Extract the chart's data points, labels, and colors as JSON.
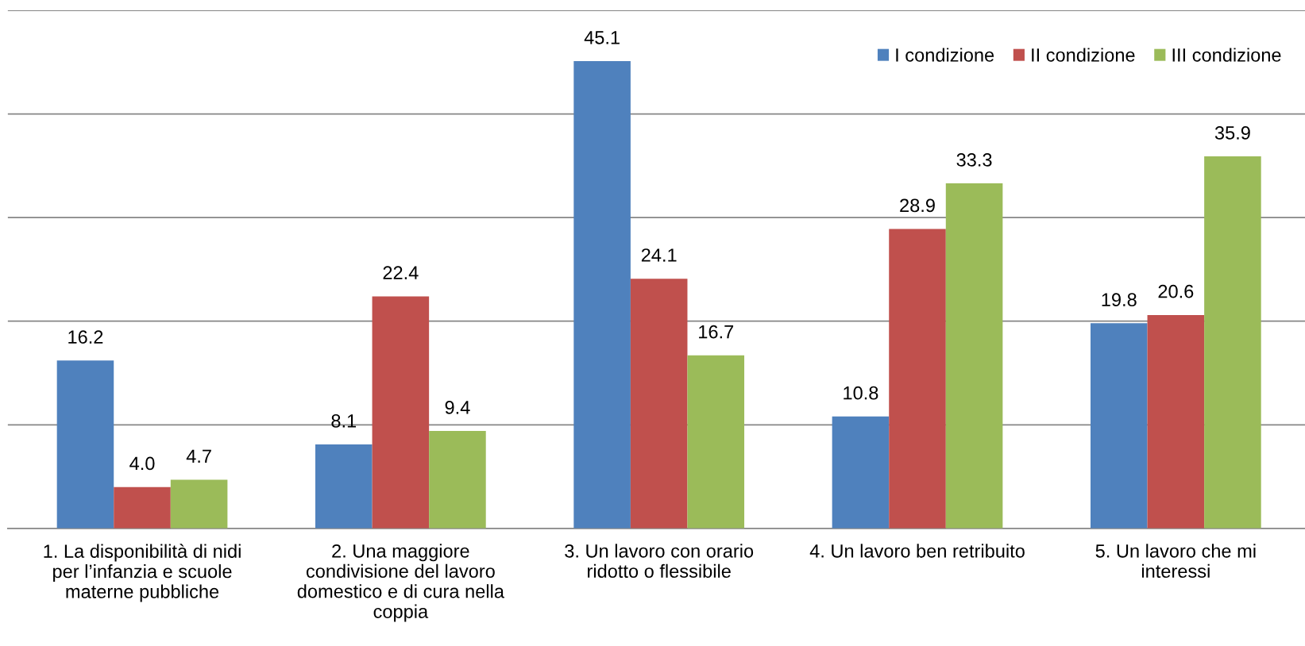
{
  "chart_data": {
    "type": "bar",
    "categories": [
      "1. La disponibilità di nidi\nper l’infanzia e scuole\nmaterne pubbliche",
      "2. Una maggiore\ncondivisione del lavoro\ndomestico e di cura nella\ncoppia",
      "3. Un lavoro con orario\nridotto o flessibile",
      "4. Un lavoro ben retribuito",
      "5. Un lavoro che mi\ninteressi"
    ],
    "series": [
      {
        "name": "I condizione",
        "color": "#4f81bd",
        "values": [
          16.2,
          8.1,
          45.1,
          10.8,
          19.8
        ],
        "value_labels": [
          "16.2",
          "8.1",
          "45.1",
          "10.8",
          "19.8"
        ]
      },
      {
        "name": "II condizione",
        "color": "#c0504d",
        "values": [
          4,
          22.4,
          24.1,
          28.9,
          20.6
        ],
        "value_labels": [
          "4.0",
          "22.4",
          "24.1",
          "28.9",
          "20.6"
        ]
      },
      {
        "name": "III condizione",
        "color": "#9bbb59",
        "values": [
          4.7,
          9.4,
          16.7,
          33.3,
          35.9
        ],
        "value_labels": [
          "4.7",
          "9.4",
          "16.7",
          "33.3",
          "35.9"
        ]
      }
    ],
    "ylim": [
      0,
      50
    ],
    "yticks": [
      {
        "value": 0,
        "label": null
      },
      {
        "value": 10,
        "label": null
      },
      {
        "value": 20,
        "label": null
      },
      {
        "value": 30,
        "label": null
      },
      {
        "value": 40,
        "label": null
      },
      {
        "value": 50,
        "label": null
      }
    ],
    "grid": "y",
    "legend": "top right",
    "tick_labels": "x"
  }
}
